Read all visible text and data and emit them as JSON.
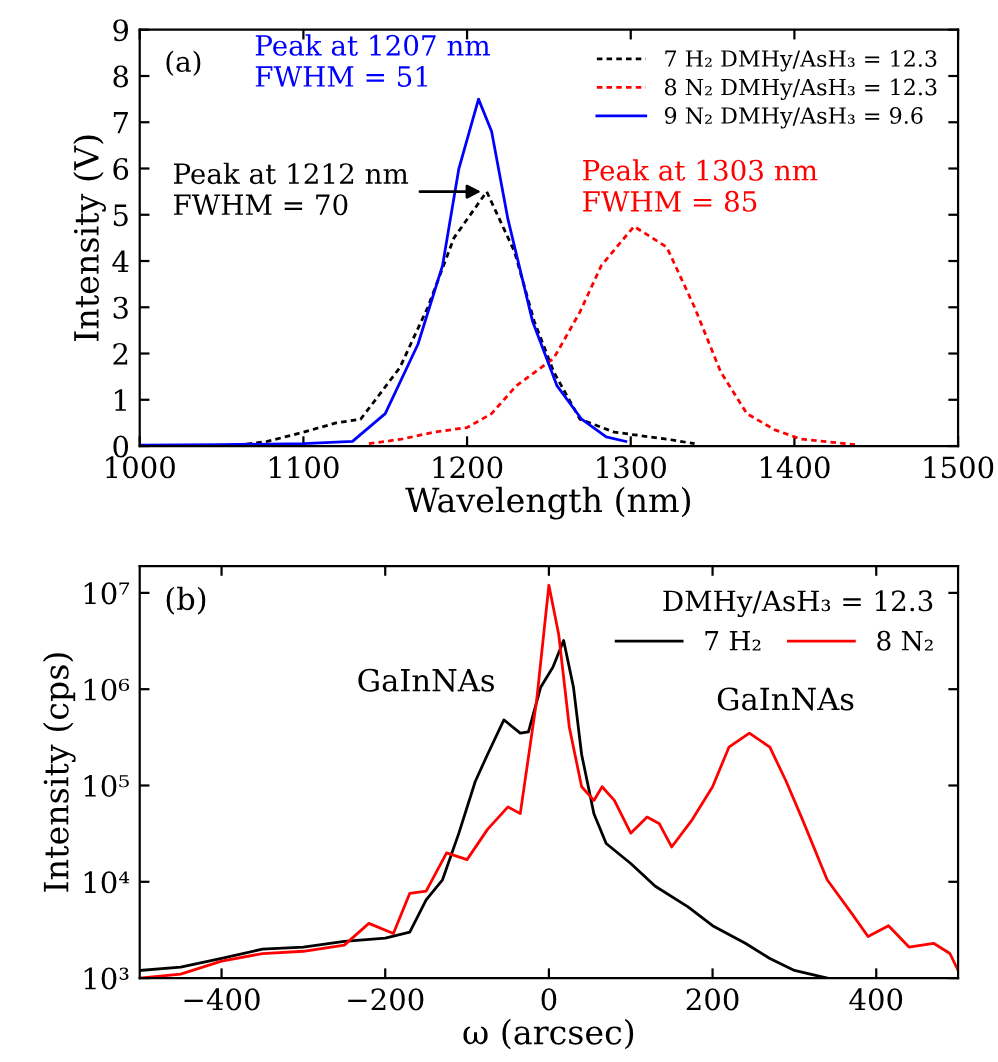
{
  "chart_data": [
    {
      "type": "line",
      "xlabel": "Wavelength (nm)",
      "ylabel": "Intensity (V)",
      "xlim": [
        1000,
        1500
      ],
      "ylim": [
        0,
        9
      ],
      "xticks": [
        1000,
        1100,
        1200,
        1300,
        1400,
        1500
      ],
      "yticks": [
        0,
        1,
        2,
        3,
        4,
        5,
        6,
        7,
        8,
        9
      ],
      "grid": false,
      "legend": "top right",
      "annotations": [
        "(a)",
        {
          "text": "Peak at 1212 nm\nFWHM = 70",
          "x": 1212,
          "y": 5.5
        },
        "Peak at 1207 nm\nFWHM = 51",
        "Peak at 1303 nm\nFWHM = 85"
      ],
      "series": [
        {
          "name": "7 H₂ DMHy/AsH₃ = 12.3",
          "color": "#000000",
          "line_style": "dotted",
          "x": [
            1000,
            1060,
            1078,
            1100,
            1120,
            1135,
            1159,
            1176,
            1192,
            1212,
            1229,
            1241,
            1253,
            1269,
            1290,
            1322,
            1339
          ],
          "values": [
            0,
            0.02,
            0.1,
            0.3,
            0.5,
            0.58,
            1.7,
            3.0,
            4.5,
            5.5,
            4.2,
            2.7,
            1.6,
            0.58,
            0.3,
            0.15,
            0.05
          ]
        },
        {
          "name": "8 N₂ DMHy/AsH₃ = 12.3",
          "color": "#ff0000",
          "line_style": "dotted",
          "x": [
            1140,
            1160,
            1180,
            1200,
            1215,
            1230,
            1253,
            1269,
            1282,
            1302,
            1322,
            1339,
            1355,
            1371,
            1388,
            1404,
            1437
          ],
          "values": [
            0.05,
            0.15,
            0.3,
            0.4,
            0.7,
            1.3,
            1.9,
            2.9,
            3.9,
            4.75,
            4.3,
            3.0,
            1.6,
            0.7,
            0.35,
            0.15,
            0.03
          ]
        },
        {
          "name": "9 N₂ DMHy/AsH₃ = 9.6",
          "color": "#0000ff",
          "line_style": "solid",
          "x": [
            1000,
            1050,
            1100,
            1130,
            1150,
            1170,
            1185,
            1195,
            1207,
            1215,
            1225,
            1240,
            1255,
            1270,
            1285,
            1297
          ],
          "values": [
            0.02,
            0.03,
            0.05,
            0.1,
            0.7,
            2.2,
            3.9,
            6.0,
            7.5,
            6.8,
            4.9,
            2.7,
            1.3,
            0.58,
            0.2,
            0.1
          ]
        }
      ]
    },
    {
      "type": "line",
      "xlabel": "ω (arcsec)",
      "ylabel": "Intensity (cps)",
      "log": "y",
      "xlim": [
        -500,
        500
      ],
      "ylim": [
        1000,
        19000000
      ],
      "xticks": [
        {
          "value": -400,
          "label": "−400"
        },
        {
          "value": -200,
          "label": "−200"
        },
        0,
        200,
        400
      ],
      "yticks": [
        {
          "value": 1000,
          "label": "10³"
        },
        {
          "value": 10000,
          "label": "10⁴"
        },
        {
          "value": 100000,
          "label": "10⁵"
        },
        {
          "value": 1000000,
          "label": "10⁶"
        },
        {
          "value": 10000000,
          "label": "10⁷"
        }
      ],
      "grid": false,
      "legend": "top right",
      "legend_title": "DMHy/AsH₃ = 12.3",
      "annotations": [
        "(b)",
        {
          "text": "GaInNAs",
          "x": -55,
          "y": 480000
        },
        {
          "text": "GaInNAs",
          "x": 245,
          "y": 350000
        }
      ],
      "series": [
        {
          "name": "7 H₂",
          "color": "#000000",
          "line_style": "solid",
          "x": [
            -500,
            -450,
            -400,
            -350,
            -300,
            -250,
            -200,
            -170,
            -150,
            -130,
            -110,
            -90,
            -75,
            -55,
            -35,
            -25,
            -10,
            5,
            18,
            30,
            40,
            55,
            70,
            100,
            130,
            170,
            200,
            240,
            270,
            300,
            340
          ],
          "values": [
            1200,
            1300,
            1600,
            2000,
            2100,
            2400,
            2600,
            3000,
            6500,
            10500,
            32000,
            110000,
            210000,
            480000,
            350000,
            360000,
            1050000,
            1700000,
            3200000,
            1050000,
            210000,
            51000,
            25000,
            15500,
            9000,
            5500,
            3500,
            2300,
            1600,
            1200,
            1000
          ]
        },
        {
          "name": "8 N₂",
          "color": "#ff0000",
          "line_style": "solid",
          "x": [
            -500,
            -450,
            -400,
            -350,
            -300,
            -250,
            -220,
            -190,
            -170,
            -150,
            -125,
            -100,
            -75,
            -50,
            -35,
            -15,
            0,
            12,
            25,
            40,
            55,
            65,
            80,
            100,
            120,
            135,
            150,
            175,
            200,
            220,
            245,
            270,
            290,
            310,
            340,
            370,
            390,
            415,
            440,
            470,
            490,
            500
          ],
          "values": [
            1000,
            1100,
            1500,
            1800,
            1900,
            2200,
            3700,
            2900,
            7600,
            8000,
            20000,
            17000,
            35000,
            60000,
            51000,
            760000,
            12000000,
            3700000,
            400000,
            97000,
            70000,
            97000,
            70000,
            32000,
            47000,
            40000,
            23000,
            44000,
            97000,
            250000,
            350000,
            250000,
            110000,
            44000,
            10500,
            4700,
            2700,
            3500,
            2100,
            2300,
            1800,
            1200
          ]
        }
      ]
    }
  ]
}
